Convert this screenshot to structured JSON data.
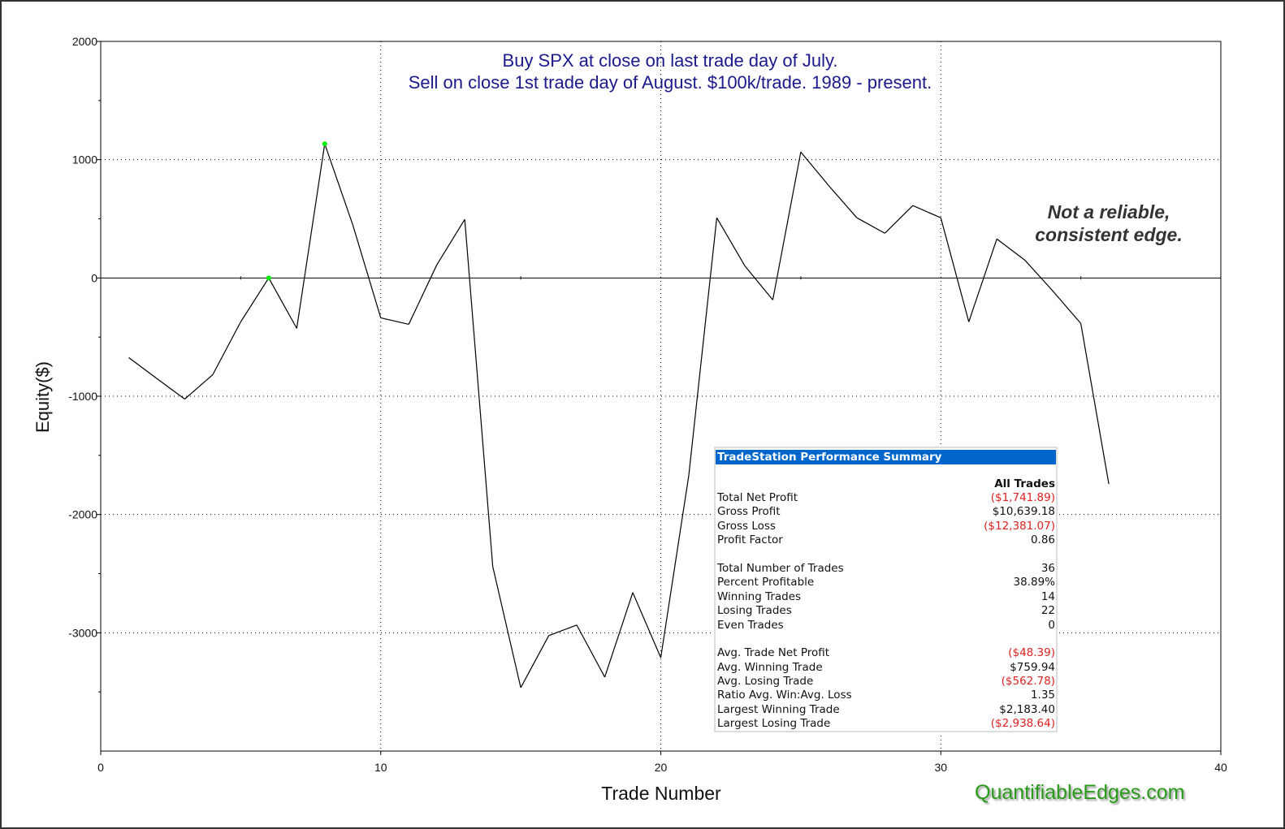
{
  "chart_data": {
    "type": "line",
    "title": [
      "Buy SPX at close on last trade day of July.",
      "Sell on close 1st trade day of August. $100k/trade. 1989 - present."
    ],
    "xlabel": "Trade Number",
    "ylabel": "Equity($)",
    "xlim": [
      0,
      40
    ],
    "ylim": [
      -4000,
      2000
    ],
    "xticks": [
      0,
      10,
      20,
      30,
      40
    ],
    "yticks": [
      2000,
      1000,
      0,
      -1000,
      -2000,
      -3000
    ],
    "grid": "dotted",
    "x": [
      1,
      2,
      3,
      4,
      5,
      6,
      7,
      8,
      9,
      10,
      11,
      12,
      13,
      14,
      15,
      16,
      17,
      18,
      19,
      20,
      21,
      22,
      23,
      24,
      25,
      26,
      27,
      28,
      29,
      30,
      31,
      32,
      33,
      34,
      35,
      36
    ],
    "values": [
      -673,
      -850,
      -1024,
      -818,
      -371,
      0,
      -426,
      1134,
      450,
      -337,
      -392,
      110,
      495,
      -2440,
      -3464,
      -3024,
      -2935,
      -3375,
      -2660,
      -3210,
      -1670,
      509,
      103,
      -186,
      1065,
      780,
      509,
      378,
      612,
      509,
      -371,
      330,
      151,
      -110,
      -385,
      -1742
    ],
    "highlighted_points": [
      6,
      8
    ],
    "line_color": "#000000",
    "highlight_color": "#00ee00",
    "annotation": [
      "Not a reliable,",
      "consistent edge."
    ]
  },
  "brand": "QuantifiableEdges.com",
  "summary": {
    "title": "TradeStation Performance Summary",
    "column": "All Trades",
    "groups": [
      [
        {
          "label": "Total Net Profit",
          "value": "($1,741.89)",
          "negative": true
        },
        {
          "label": "Gross Profit",
          "value": "$10,639.18",
          "negative": false
        },
        {
          "label": "Gross Loss",
          "value": "($12,381.07)",
          "negative": true
        },
        {
          "label": "Profit Factor",
          "value": "0.86",
          "negative": false
        }
      ],
      [
        {
          "label": "Total Number of Trades",
          "value": "36",
          "negative": false
        },
        {
          "label": "Percent Profitable",
          "value": "38.89%",
          "negative": false
        },
        {
          "label": "Winning Trades",
          "value": "14",
          "negative": false
        },
        {
          "label": "Losing Trades",
          "value": "22",
          "negative": false
        },
        {
          "label": "Even Trades",
          "value": "0",
          "negative": false
        }
      ],
      [
        {
          "label": "Avg. Trade Net Profit",
          "value": "($48.39)",
          "negative": true
        },
        {
          "label": "Avg. Winning Trade",
          "value": "$759.94",
          "negative": false
        },
        {
          "label": "Avg. Losing Trade",
          "value": "($562.78)",
          "negative": true
        },
        {
          "label": "Ratio Avg. Win:Avg. Loss",
          "value": "1.35",
          "negative": false
        },
        {
          "label": "Largest Winning Trade",
          "value": "$2,183.40",
          "negative": false
        },
        {
          "label": "Largest Losing Trade",
          "value": "($2,938.64)",
          "negative": true
        }
      ]
    ]
  }
}
